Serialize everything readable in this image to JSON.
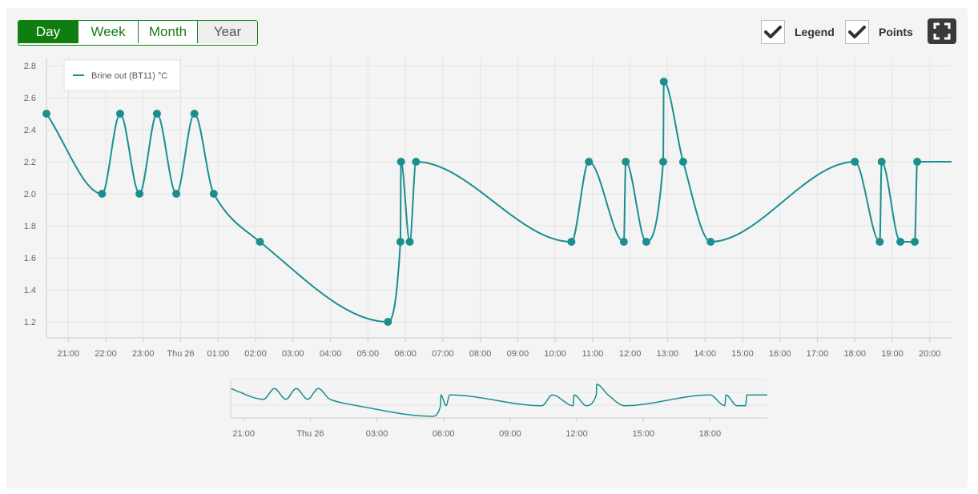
{
  "range_buttons": [
    "Day",
    "Week",
    "Month",
    "Year"
  ],
  "active_range": "Day",
  "toggles": {
    "legend_label": "Legend",
    "points_label": "Points"
  },
  "colors": {
    "series": "#1a8f8f",
    "active": "#0f7d0f"
  },
  "icons": {
    "checkbox": "check-icon",
    "fullscreen": "fullscreen-icon"
  },
  "chart_data": {
    "type": "line",
    "title": "",
    "xlabel": "",
    "ylabel": "",
    "legend": {
      "visible": true,
      "position": "top-left"
    },
    "grid": true,
    "ylim": [
      1.1,
      2.85
    ],
    "yticks": [
      1.2,
      1.4,
      1.6,
      1.8,
      2.0,
      2.2,
      2.4,
      2.6,
      2.8
    ],
    "xlim": [
      "2024-09-25T20:25",
      "2024-09-26T20:35"
    ],
    "xticks": [
      {
        "t": "2024-09-25T21:00",
        "label": "21:00"
      },
      {
        "t": "2024-09-25T22:00",
        "label": "22:00"
      },
      {
        "t": "2024-09-25T23:00",
        "label": "23:00"
      },
      {
        "t": "2024-09-26T00:00",
        "label": "Thu 26"
      },
      {
        "t": "2024-09-26T01:00",
        "label": "01:00"
      },
      {
        "t": "2024-09-26T02:00",
        "label": "02:00"
      },
      {
        "t": "2024-09-26T03:00",
        "label": "03:00"
      },
      {
        "t": "2024-09-26T04:00",
        "label": "04:00"
      },
      {
        "t": "2024-09-26T05:00",
        "label": "05:00"
      },
      {
        "t": "2024-09-26T06:00",
        "label": "06:00"
      },
      {
        "t": "2024-09-26T07:00",
        "label": "07:00"
      },
      {
        "t": "2024-09-26T08:00",
        "label": "08:00"
      },
      {
        "t": "2024-09-26T09:00",
        "label": "09:00"
      },
      {
        "t": "2024-09-26T10:00",
        "label": "10:00"
      },
      {
        "t": "2024-09-26T11:00",
        "label": "11:00"
      },
      {
        "t": "2024-09-26T12:00",
        "label": "12:00"
      },
      {
        "t": "2024-09-26T13:00",
        "label": "13:00"
      },
      {
        "t": "2024-09-26T14:00",
        "label": "14:00"
      },
      {
        "t": "2024-09-26T15:00",
        "label": "15:00"
      },
      {
        "t": "2024-09-26T16:00",
        "label": "16:00"
      },
      {
        "t": "2024-09-26T17:00",
        "label": "17:00"
      },
      {
        "t": "2024-09-26T18:00",
        "label": "18:00"
      },
      {
        "t": "2024-09-26T19:00",
        "label": "19:00"
      },
      {
        "t": "2024-09-26T20:00",
        "label": "20:00"
      }
    ],
    "series": [
      {
        "name": "Brine out (BT11) °C",
        "points": [
          {
            "t": "2024-09-25T20:25",
            "y": 2.5
          },
          {
            "t": "2024-09-25T21:54",
            "y": 2.0
          },
          {
            "t": "2024-09-25T22:23",
            "y": 2.5
          },
          {
            "t": "2024-09-25T22:54",
            "y": 2.0
          },
          {
            "t": "2024-09-25T23:22",
            "y": 2.5
          },
          {
            "t": "2024-09-25T23:53",
            "y": 2.0
          },
          {
            "t": "2024-09-26T00:22",
            "y": 2.5
          },
          {
            "t": "2024-09-26T00:53",
            "y": 2.0
          },
          {
            "t": "2024-09-26T02:07",
            "y": 1.7
          },
          {
            "t": "2024-09-26T05:32",
            "y": 1.2
          },
          {
            "t": "2024-09-26T05:52",
            "y": 1.7
          },
          {
            "t": "2024-09-26T05:53",
            "y": 2.2
          },
          {
            "t": "2024-09-26T06:07",
            "y": 1.7
          },
          {
            "t": "2024-09-26T06:17",
            "y": 2.2
          },
          {
            "t": "2024-09-26T10:26",
            "y": 1.7
          },
          {
            "t": "2024-09-26T10:54",
            "y": 2.2
          },
          {
            "t": "2024-09-26T11:50",
            "y": 1.7
          },
          {
            "t": "2024-09-26T11:53",
            "y": 2.2
          },
          {
            "t": "2024-09-26T12:26",
            "y": 1.7
          },
          {
            "t": "2024-09-26T12:53",
            "y": 2.2
          },
          {
            "t": "2024-09-26T12:54",
            "y": 2.7
          },
          {
            "t": "2024-09-26T13:25",
            "y": 2.2
          },
          {
            "t": "2024-09-26T14:09",
            "y": 1.7
          },
          {
            "t": "2024-09-26T18:00",
            "y": 2.2
          },
          {
            "t": "2024-09-26T18:40",
            "y": 1.7
          },
          {
            "t": "2024-09-26T18:43",
            "y": 2.2
          },
          {
            "t": "2024-09-26T19:13",
            "y": 1.7
          },
          {
            "t": "2024-09-26T19:36",
            "y": 1.7
          },
          {
            "t": "2024-09-26T19:40",
            "y": 2.2
          },
          {
            "t": "2024-09-26T20:35",
            "y": 2.2
          }
        ]
      }
    ],
    "navigator": {
      "xticks": [
        {
          "t": "2024-09-25T21:00",
          "label": "21:00"
        },
        {
          "t": "2024-09-26T00:00",
          "label": "Thu 26"
        },
        {
          "t": "2024-09-26T03:00",
          "label": "03:00"
        },
        {
          "t": "2024-09-26T06:00",
          "label": "06:00"
        },
        {
          "t": "2024-09-26T09:00",
          "label": "09:00"
        },
        {
          "t": "2024-09-26T12:00",
          "label": "12:00"
        },
        {
          "t": "2024-09-26T15:00",
          "label": "15:00"
        },
        {
          "t": "2024-09-26T18:00",
          "label": "18:00"
        }
      ]
    }
  }
}
